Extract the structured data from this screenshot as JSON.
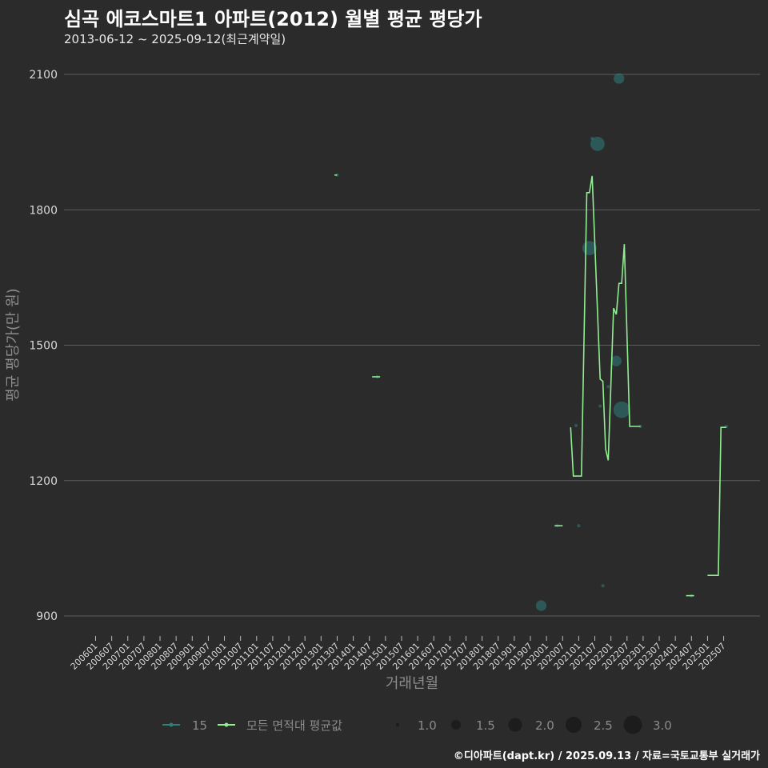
{
  "title": "심곡 에코스마트1 아파트(2012) 월별 평균 평당가",
  "subtitle": "2013-06-12 ~ 2025-09-12(최근계약일)",
  "credit": "©디아파트(dapt.kr) / 2025.09.13 / 자료=국토교통부 실거래가",
  "colors": {
    "background": "#2b2b2c",
    "grid": "#5c5c5c",
    "avg_line": "#90ee90",
    "area15": "#2e7f7c"
  },
  "chart_data": {
    "type": "line",
    "xlabel": "거래년월",
    "ylabel": "평균 평당가(만 원)",
    "ylim": [
      870,
      2110
    ],
    "yticks": [
      900,
      1200,
      1500,
      1800,
      2100
    ],
    "xticks": [
      "200601",
      "200607",
      "200701",
      "200707",
      "200801",
      "200807",
      "200901",
      "200907",
      "201001",
      "201007",
      "201101",
      "201107",
      "201201",
      "201207",
      "201301",
      "201307",
      "201401",
      "201407",
      "201501",
      "201507",
      "201601",
      "201607",
      "201701",
      "201707",
      "201801",
      "201807",
      "201901",
      "201907",
      "202001",
      "202007",
      "202101",
      "202107",
      "202201",
      "202207",
      "202301",
      "202307",
      "202401",
      "202407",
      "202501",
      "202507"
    ],
    "legend": {
      "series": [
        "15",
        "모든 면적대 평균값"
      ],
      "size_title": "",
      "sizes": [
        "1.0",
        "1.5",
        "2.0",
        "2.5",
        "3.0"
      ],
      "placement": "bottom"
    },
    "series": [
      {
        "name": "모든 면적대 평균값",
        "segments": [
          [
            [
              "201306",
              1877
            ],
            [
              "201307",
              1877
            ]
          ],
          [
            [
              "201408",
              1430
            ],
            [
              "201411",
              1430
            ]
          ],
          [
            [
              "202004",
              1100
            ],
            [
              "202007",
              1100
            ]
          ],
          [
            [
              "202010",
              1318
            ],
            [
              "202011",
              1210
            ],
            [
              "202102",
              1210
            ],
            [
              "202104",
              1838
            ],
            [
              "202105",
              1838
            ],
            [
              "202106",
              1875
            ],
            [
              "202109",
              1425
            ],
            [
              "202110",
              1420
            ],
            [
              "202111",
              1270
            ],
            [
              "202112",
              1245
            ],
            [
              "202202",
              1582
            ],
            [
              "202203",
              1568
            ],
            [
              "202204",
              1637
            ],
            [
              "202205",
              1637
            ],
            [
              "202206",
              1724
            ],
            [
              "202208",
              1320
            ],
            [
              "202212",
              1320
            ]
          ],
          [
            [
              "202405",
              945
            ],
            [
              "202408",
              945
            ]
          ],
          [
            [
              "202501",
              990
            ],
            [
              "202505",
              990
            ],
            [
              "202506",
              1318
            ],
            [
              "202508",
              1318
            ]
          ]
        ]
      },
      {
        "name": "15",
        "points": [
          [
            "201307",
            1877,
            1.0
          ],
          [
            "201410",
            1430,
            1.0
          ],
          [
            "202005",
            1100,
            1.0
          ],
          [
            "201911",
            923,
            2.0
          ],
          [
            "202012",
            1322,
            1.0
          ],
          [
            "202101",
            1100,
            1.0
          ],
          [
            "202105",
            1715,
            2.5
          ],
          [
            "202106",
            1958,
            1.0
          ],
          [
            "202108",
            1946,
            2.5
          ],
          [
            "202109",
            1365,
            1.0
          ],
          [
            "202110",
            967,
            1.0
          ],
          [
            "202112",
            1408,
            1.0
          ],
          [
            "202203",
            1465,
            2.0
          ],
          [
            "202204",
            2091,
            2.0
          ],
          [
            "202205",
            1357,
            2.8
          ],
          [
            "202212",
            1320,
            1.0
          ],
          [
            "202407",
            945,
            1.0
          ],
          [
            "202508",
            1320,
            1.0
          ]
        ]
      }
    ]
  }
}
